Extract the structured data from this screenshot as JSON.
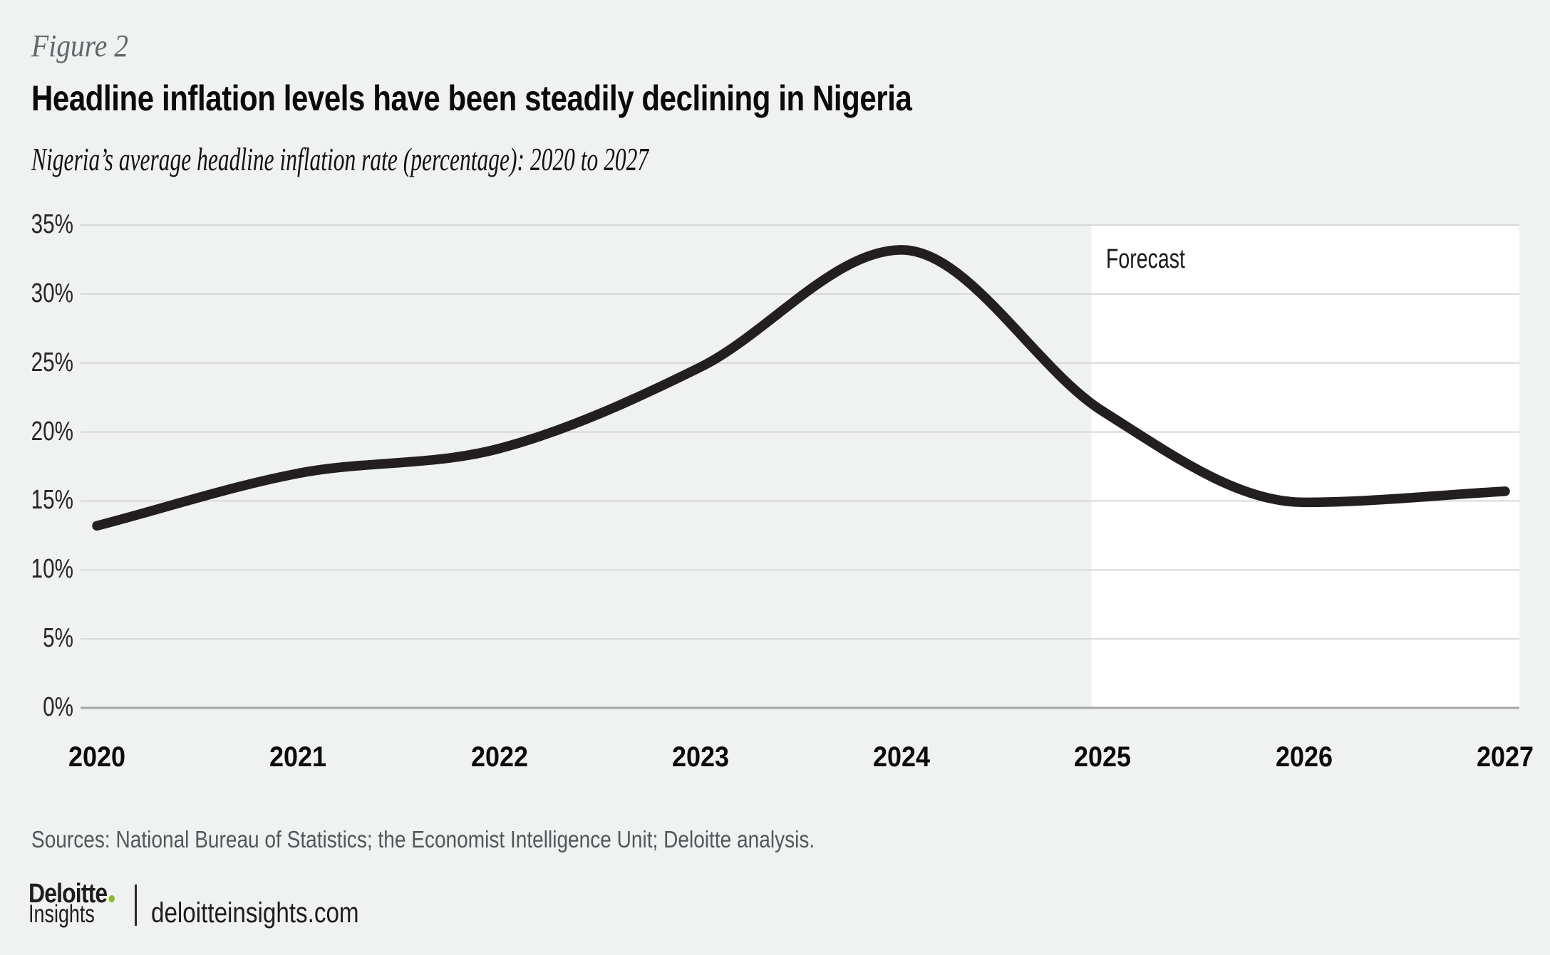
{
  "figure_label": "Figure 2",
  "title": "Headline inflation levels have been steadily declining in Nigeria",
  "subtitle": "Nigeria’s average headline inflation rate (percentage): 2020 to 2027",
  "sources": "Sources: National Bureau of Statistics; the Economist Intelligence Unit; Deloitte analysis.",
  "footer": {
    "brand_primary": "Deloitte",
    "brand_secondary": "Insights",
    "site": "deloitteinsights.com"
  },
  "colors": {
    "background": "#f0f1f1",
    "forecast_background": "#ffffff",
    "gridline": "#d6d7d7",
    "axis_line": "#a6a7a9",
    "line": "#231f20",
    "accent_green": "#86bc25",
    "muted_text": "#53565a"
  },
  "chart_data": {
    "type": "line",
    "title": "Headline inflation levels have been steadily declining in Nigeria",
    "subtitle": "Nigeria’s average headline inflation rate (percentage): 2020 to 2027",
    "series_name": "Nigeria average headline inflation rate (%)",
    "categories": [
      "2020",
      "2021",
      "2022",
      "2023",
      "2024",
      "2025",
      "2026",
      "2027"
    ],
    "values": [
      13.2,
      17.0,
      18.8,
      24.7,
      33.2,
      21.5,
      14.9,
      15.7
    ],
    "unit": "%",
    "xlabel": "",
    "ylabel": "",
    "ylim": [
      0,
      35
    ],
    "y_ticks": [
      "35%",
      "30%",
      "25%",
      "20%",
      "15%",
      "10%",
      "5%",
      "0%"
    ],
    "grid": "horizontal",
    "legend": "none",
    "forecast": {
      "label": "Forecast",
      "from": "2025",
      "to": "2027"
    }
  }
}
